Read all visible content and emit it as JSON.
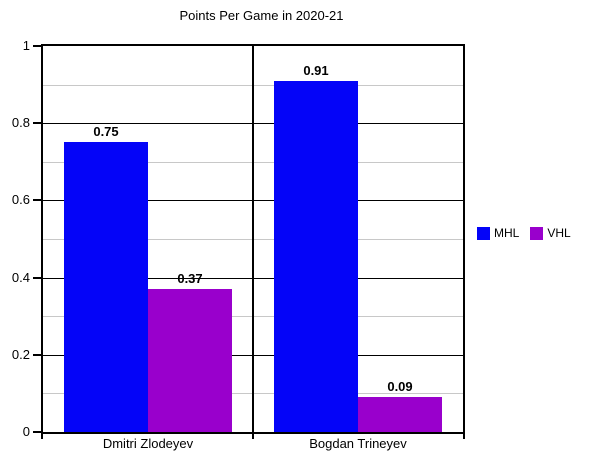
{
  "chart_data": {
    "type": "bar",
    "title": "Points Per Game in 2020-21",
    "categories": [
      "Dmitri Zlodeyev",
      "Bogdan Trineyev"
    ],
    "series": [
      {
        "name": "MHL",
        "color": "#0404F8",
        "values": [
          0.75,
          0.91
        ],
        "value_labels": [
          "0.75",
          "0.91"
        ]
      },
      {
        "name": "VHL",
        "color": "#9900CC",
        "values": [
          0.37,
          0.09
        ],
        "value_labels": [
          "0.37",
          "0.09"
        ]
      }
    ],
    "xlabel": "",
    "ylabel": "",
    "ylim": [
      0,
      1
    ],
    "yticks": [
      {
        "value": 0,
        "label": "0"
      },
      {
        "value": 0.2,
        "label": "0.2"
      },
      {
        "value": 0.4,
        "label": "0.4"
      },
      {
        "value": 0.6,
        "label": "0.6"
      },
      {
        "value": 0.8,
        "label": "0.8"
      },
      {
        "value": 1,
        "label": "1"
      }
    ],
    "minor_tick_step": 0.1,
    "grid": {
      "major": "on",
      "minor": "on"
    },
    "legend_position": "right-center",
    "colors": {
      "major_gridline": "#000000",
      "minor_gridline": "#C8C8C8",
      "axis_frame": "#000000",
      "background": "#FFFFFF",
      "text": "#000000"
    }
  }
}
